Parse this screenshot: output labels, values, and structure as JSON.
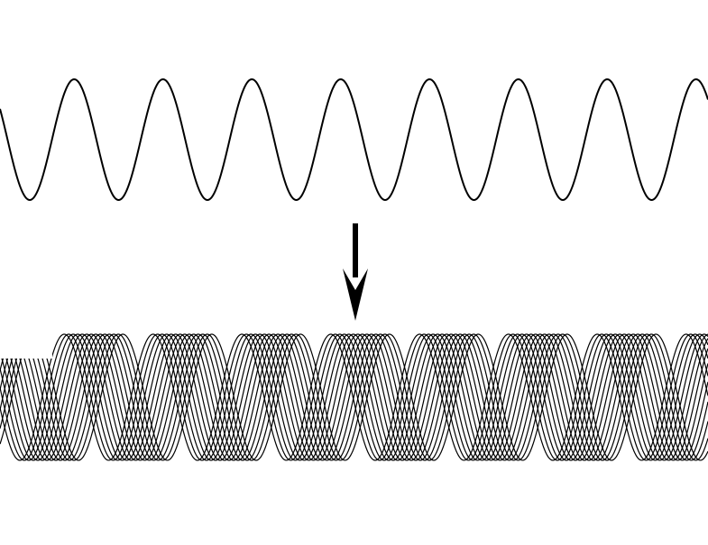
{
  "figure": {
    "background_color": "#ffffff",
    "stroke_color": "#000000",
    "top_wave": {
      "kind": "single-sine",
      "cycles_visible": 7.8,
      "peaks": 8,
      "troughs": 8
    },
    "arrow": {
      "direction": "down",
      "icon": "down-arrow-icon"
    },
    "bottom_wave": {
      "kind": "stacked-sine-family",
      "curve_count": 14,
      "peaks": 8
    }
  }
}
